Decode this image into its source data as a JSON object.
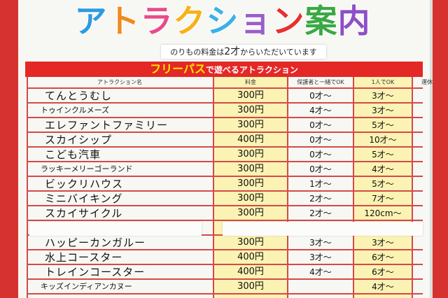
{
  "title": {
    "parts": [
      {
        "text": "ア",
        "color": "#2d9be0"
      },
      {
        "text": "ト",
        "color": "#f08a1c"
      },
      {
        "text": "ラ",
        "color": "#e94b8a"
      },
      {
        "text": "ク",
        "color": "#f6b21a"
      },
      {
        "text": "シ",
        "color": "#3bb0e8"
      },
      {
        "text": "ョ",
        "color": "#9a5fc9"
      },
      {
        "text": "ン",
        "color": "#e6322f"
      },
      {
        "text": "案",
        "color": "#3aa843"
      },
      {
        "text": "内",
        "color": "#8e4fc6"
      }
    ]
  },
  "subtitle": {
    "pre": "のりもの料金は",
    "big": "2才",
    "post": "からいただいています"
  },
  "banner": {
    "highlight": "フリーパス",
    "rest": "で遊べるアトラクション"
  },
  "columns": {
    "name": "アトラクション名",
    "price": "料金",
    "guardian": "保護者と一緒でOK",
    "alone": "1人でOK",
    "closed": "運休"
  },
  "colors": {
    "frame": "#d63230",
    "grid": "#d44a47",
    "yellow": "#fbf3b3"
  },
  "rows": [
    {
      "name": "てんとうむし",
      "price": "300円",
      "guardian": "0才～",
      "alone": "3才～",
      "small": false
    },
    {
      "name": "トゥインクルメーズ",
      "price": "300円",
      "guardian": "4才～",
      "alone": "3才～",
      "small": true
    },
    {
      "name": "エレファントファミリー",
      "price": "300円",
      "guardian": "0才～",
      "alone": "5才～",
      "small": false
    },
    {
      "name": "スカイシップ",
      "price": "400円",
      "guardian": "0才～",
      "alone": "10才～",
      "small": false
    },
    {
      "name": "こども汽車",
      "price": "300円",
      "guardian": "0才～",
      "alone": "5才～",
      "small": false
    },
    {
      "name": "ラッキーメリーゴーランド",
      "price": "300円",
      "guardian": "0才～",
      "alone": "4才～",
      "small": true
    },
    {
      "name": "ビックリハウス",
      "price": "300円",
      "guardian": "1才～",
      "alone": "5才～",
      "small": false
    },
    {
      "name": "ミニバイキング",
      "price": "300円",
      "guardian": "2才～",
      "alone": "7才～",
      "small": false
    },
    {
      "name": "スカイサイクル",
      "price": "300円",
      "guardian": "2才～",
      "alone": "120cm～",
      "small": false
    },
    {
      "name": "",
      "price": "",
      "guardian": "",
      "alone": "",
      "small": false
    },
    {
      "name": "ハッピーカンガルー",
      "price": "300円",
      "guardian": "3才～",
      "alone": "3才～",
      "small": false
    },
    {
      "name": "水上コースター",
      "price": "400円",
      "guardian": "3才～",
      "alone": "6才～",
      "small": false
    },
    {
      "name": "トレインコースター",
      "price": "400円",
      "guardian": "4才～",
      "alone": "6才～",
      "small": false
    },
    {
      "name": "キッズインディアンカヌー",
      "price": "300円",
      "guardian": "",
      "alone": "4才～",
      "small": true
    }
  ]
}
